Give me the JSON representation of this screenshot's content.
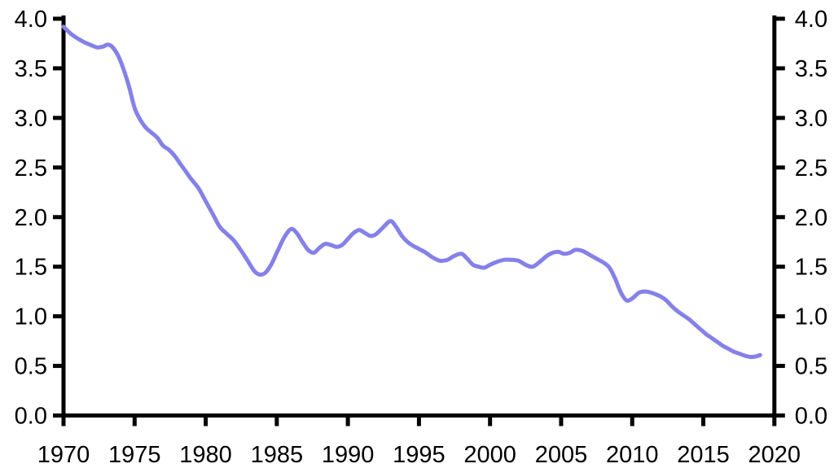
{
  "figure": {
    "background_color": "#ffffff",
    "title": ""
  },
  "chart_data": {
    "type": "line",
    "title": "",
    "xlabel": "",
    "ylabel": "",
    "xlim": [
      1970,
      2020
    ],
    "ylim": [
      0.0,
      4.0
    ],
    "grid": false,
    "legend": null,
    "axes_shown": {
      "left": true,
      "right": true,
      "bottom": true,
      "top": false
    },
    "y_labels_both_sides": true,
    "line_color": "#8481e8",
    "line_width": 5,
    "axis_color": "#000000",
    "axis_width": 5,
    "tick_length": 13,
    "xticks": {
      "values": [
        1970,
        1975,
        1980,
        1985,
        1990,
        1995,
        2000,
        2005,
        2010,
        2015,
        2020
      ],
      "labels": [
        "1970",
        "1975",
        "1980",
        "1985",
        "1990",
        "1995",
        "2000",
        "2005",
        "2010",
        "2015",
        "2020"
      ]
    },
    "yticks": {
      "values": [
        0.0,
        0.5,
        1.0,
        1.5,
        2.0,
        2.5,
        3.0,
        3.5,
        4.0
      ],
      "labels": [
        "0.0",
        "0.5",
        "1.0",
        "1.5",
        "2.0",
        "2.5",
        "3.0",
        "3.5",
        "4.0"
      ]
    },
    "series": [
      {
        "name": "main-line",
        "points": [
          [
            1970.0,
            3.92
          ],
          [
            1970.5,
            3.85
          ],
          [
            1971.0,
            3.8
          ],
          [
            1971.5,
            3.76
          ],
          [
            1972.0,
            3.73
          ],
          [
            1972.4,
            3.71
          ],
          [
            1972.8,
            3.72
          ],
          [
            1973.1,
            3.74
          ],
          [
            1973.4,
            3.72
          ],
          [
            1973.8,
            3.64
          ],
          [
            1974.2,
            3.5
          ],
          [
            1974.6,
            3.32
          ],
          [
            1975.0,
            3.1
          ],
          [
            1975.4,
            2.98
          ],
          [
            1975.8,
            2.9
          ],
          [
            1976.2,
            2.85
          ],
          [
            1976.6,
            2.8
          ],
          [
            1977.0,
            2.72
          ],
          [
            1977.4,
            2.68
          ],
          [
            1977.8,
            2.62
          ],
          [
            1978.2,
            2.54
          ],
          [
            1978.6,
            2.46
          ],
          [
            1979.0,
            2.38
          ],
          [
            1979.5,
            2.29
          ],
          [
            1980.0,
            2.16
          ],
          [
            1980.5,
            2.03
          ],
          [
            1981.0,
            1.9
          ],
          [
            1981.5,
            1.83
          ],
          [
            1982.0,
            1.76
          ],
          [
            1982.5,
            1.66
          ],
          [
            1983.0,
            1.55
          ],
          [
            1983.4,
            1.46
          ],
          [
            1983.8,
            1.42
          ],
          [
            1984.2,
            1.44
          ],
          [
            1984.6,
            1.52
          ],
          [
            1985.0,
            1.64
          ],
          [
            1985.5,
            1.79
          ],
          [
            1986.0,
            1.88
          ],
          [
            1986.4,
            1.84
          ],
          [
            1986.8,
            1.75
          ],
          [
            1987.2,
            1.67
          ],
          [
            1987.6,
            1.64
          ],
          [
            1988.0,
            1.69
          ],
          [
            1988.4,
            1.73
          ],
          [
            1988.8,
            1.72
          ],
          [
            1989.2,
            1.7
          ],
          [
            1989.6,
            1.72
          ],
          [
            1990.0,
            1.78
          ],
          [
            1990.4,
            1.84
          ],
          [
            1990.8,
            1.87
          ],
          [
            1991.2,
            1.84
          ],
          [
            1991.6,
            1.81
          ],
          [
            1992.0,
            1.83
          ],
          [
            1992.5,
            1.9
          ],
          [
            1993.0,
            1.96
          ],
          [
            1993.4,
            1.9
          ],
          [
            1993.8,
            1.81
          ],
          [
            1994.2,
            1.75
          ],
          [
            1994.6,
            1.71
          ],
          [
            1995.0,
            1.68
          ],
          [
            1995.5,
            1.64
          ],
          [
            1996.0,
            1.59
          ],
          [
            1996.5,
            1.56
          ],
          [
            1997.0,
            1.57
          ],
          [
            1997.5,
            1.61
          ],
          [
            1998.0,
            1.63
          ],
          [
            1998.4,
            1.58
          ],
          [
            1998.8,
            1.52
          ],
          [
            1999.2,
            1.5
          ],
          [
            1999.6,
            1.49
          ],
          [
            2000.0,
            1.52
          ],
          [
            2000.5,
            1.55
          ],
          [
            2001.0,
            1.57
          ],
          [
            2001.5,
            1.57
          ],
          [
            2002.0,
            1.56
          ],
          [
            2002.5,
            1.52
          ],
          [
            2003.0,
            1.5
          ],
          [
            2003.5,
            1.55
          ],
          [
            2004.0,
            1.61
          ],
          [
            2004.4,
            1.64
          ],
          [
            2004.8,
            1.65
          ],
          [
            2005.2,
            1.63
          ],
          [
            2005.6,
            1.64
          ],
          [
            2006.0,
            1.67
          ],
          [
            2006.5,
            1.66
          ],
          [
            2007.0,
            1.62
          ],
          [
            2007.5,
            1.58
          ],
          [
            2008.0,
            1.54
          ],
          [
            2008.4,
            1.49
          ],
          [
            2008.8,
            1.38
          ],
          [
            2009.2,
            1.24
          ],
          [
            2009.6,
            1.16
          ],
          [
            2010.0,
            1.18
          ],
          [
            2010.5,
            1.24
          ],
          [
            2011.0,
            1.25
          ],
          [
            2011.5,
            1.23
          ],
          [
            2012.0,
            1.2
          ],
          [
            2012.4,
            1.16
          ],
          [
            2012.8,
            1.1
          ],
          [
            2013.2,
            1.05
          ],
          [
            2013.6,
            1.01
          ],
          [
            2014.0,
            0.97
          ],
          [
            2014.4,
            0.92
          ],
          [
            2014.8,
            0.87
          ],
          [
            2015.2,
            0.82
          ],
          [
            2015.6,
            0.78
          ],
          [
            2016.0,
            0.74
          ],
          [
            2016.4,
            0.7
          ],
          [
            2016.8,
            0.67
          ],
          [
            2017.2,
            0.64
          ],
          [
            2017.6,
            0.62
          ],
          [
            2018.0,
            0.6
          ],
          [
            2018.4,
            0.59
          ],
          [
            2018.8,
            0.6
          ],
          [
            2019.0,
            0.61
          ]
        ]
      }
    ]
  }
}
